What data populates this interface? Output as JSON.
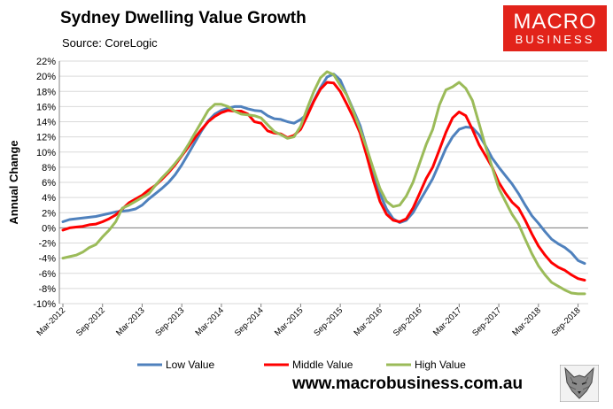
{
  "header": {
    "title": "Sydney Dwelling Value Growth",
    "source": "Source: CoreLogic"
  },
  "logo": {
    "line1": "MACRO",
    "line2": "BUSINESS"
  },
  "footer": {
    "website": "www.macrobusiness.com.au"
  },
  "colors": {
    "low": "#4f81bd",
    "middle": "#ff0000",
    "high": "#9bbb59",
    "brand": "#e2231a"
  },
  "chart_data": {
    "type": "line",
    "title": "Sydney Dwelling Value Growth",
    "xlabel": "",
    "ylabel": "Annual Change",
    "ylim": [
      -10,
      22
    ],
    "yticks": [
      -10,
      -8,
      -6,
      -4,
      -2,
      0,
      2,
      4,
      6,
      8,
      10,
      12,
      14,
      16,
      18,
      20,
      22
    ],
    "ytick_labels": [
      "-10%",
      "-8%",
      "-6%",
      "-4%",
      "-2%",
      "0%",
      "2%",
      "4%",
      "6%",
      "8%",
      "10%",
      "12%",
      "14%",
      "16%",
      "18%",
      "20%",
      "22%"
    ],
    "x_start": "Mar-2012",
    "x_labels": [
      "Mar-2012",
      "Sep-2012",
      "Mar-2013",
      "Sep-2013",
      "Mar-2014",
      "Sep-2014",
      "Mar-2015",
      "Sep-2015",
      "Mar-2016",
      "Sep-2016",
      "Mar-2017",
      "Sep-2017",
      "Mar-2018",
      "Sep-2018"
    ],
    "x_label_every": 6,
    "legend_position": "bottom",
    "series": [
      {
        "name": "Low Value",
        "color": "#4f81bd",
        "values": [
          0.8,
          1.1,
          1.2,
          1.3,
          1.4,
          1.5,
          1.7,
          1.9,
          2.1,
          2.2,
          2.3,
          2.5,
          3.0,
          3.8,
          4.5,
          5.2,
          6.0,
          7.0,
          8.3,
          9.8,
          11.3,
          12.8,
          14.1,
          15.0,
          15.5,
          15.8,
          16.0,
          16.0,
          15.7,
          15.5,
          15.4,
          14.8,
          14.4,
          14.3,
          14.0,
          13.8,
          14.3,
          15.0,
          16.8,
          18.5,
          19.9,
          20.3,
          19.5,
          17.5,
          15.5,
          13.5,
          10.5,
          7.5,
          4.5,
          2.5,
          1.2,
          0.7,
          1.0,
          2.0,
          3.5,
          5.0,
          6.5,
          8.5,
          10.5,
          12.0,
          13.0,
          13.3,
          13.2,
          12.3,
          10.8,
          9.2,
          8.0,
          6.9,
          5.8,
          4.5,
          3.0,
          1.6,
          0.6,
          -0.5,
          -1.5,
          -2.1,
          -2.6,
          -3.3,
          -4.3,
          -4.7
        ]
      },
      {
        "name": "Middle Value",
        "color": "#ff0000",
        "values": [
          -0.3,
          0.0,
          0.1,
          0.2,
          0.4,
          0.5,
          0.8,
          1.2,
          1.7,
          2.5,
          3.3,
          3.8,
          4.3,
          5.0,
          5.6,
          6.4,
          7.3,
          8.3,
          9.5,
          10.7,
          11.9,
          13.0,
          14.0,
          14.7,
          15.2,
          15.5,
          15.4,
          15.4,
          15.0,
          14.0,
          13.8,
          12.8,
          12.5,
          12.4,
          11.9,
          12.2,
          13.0,
          14.8,
          16.7,
          18.3,
          19.2,
          19.1,
          18.0,
          16.3,
          14.5,
          12.5,
          9.5,
          6.3,
          3.5,
          1.8,
          1.0,
          0.8,
          1.2,
          2.6,
          4.5,
          6.5,
          8.0,
          10.3,
          12.6,
          14.5,
          15.3,
          14.8,
          13.0,
          11.0,
          9.5,
          8.0,
          6.0,
          4.6,
          3.4,
          2.6,
          1.0,
          -0.8,
          -2.4,
          -3.6,
          -4.6,
          -5.2,
          -5.6,
          -6.2,
          -6.7,
          -6.9
        ]
      },
      {
        "name": "High Value",
        "color": "#9bbb59",
        "values": [
          -4.0,
          -3.8,
          -3.6,
          -3.2,
          -2.6,
          -2.2,
          -1.2,
          -0.3,
          0.8,
          2.6,
          3.0,
          3.5,
          4.0,
          4.5,
          5.6,
          6.6,
          7.5,
          8.5,
          9.6,
          11.0,
          12.5,
          14.0,
          15.5,
          16.3,
          16.3,
          16.0,
          15.4,
          15.0,
          14.9,
          14.8,
          14.5,
          13.6,
          12.7,
          12.3,
          11.8,
          12.0,
          13.4,
          15.8,
          18.0,
          19.8,
          20.6,
          20.2,
          18.8,
          17.5,
          15.3,
          13.0,
          10.5,
          7.8,
          5.2,
          3.5,
          2.8,
          3.0,
          4.2,
          6.0,
          8.5,
          11.0,
          13.0,
          16.2,
          18.2,
          18.6,
          19.2,
          18.4,
          16.8,
          13.8,
          10.7,
          8.0,
          5.2,
          3.5,
          1.8,
          0.5,
          -1.5,
          -3.4,
          -5.0,
          -6.2,
          -7.2,
          -7.7,
          -8.2,
          -8.6,
          -8.7,
          -8.7
        ]
      }
    ]
  }
}
